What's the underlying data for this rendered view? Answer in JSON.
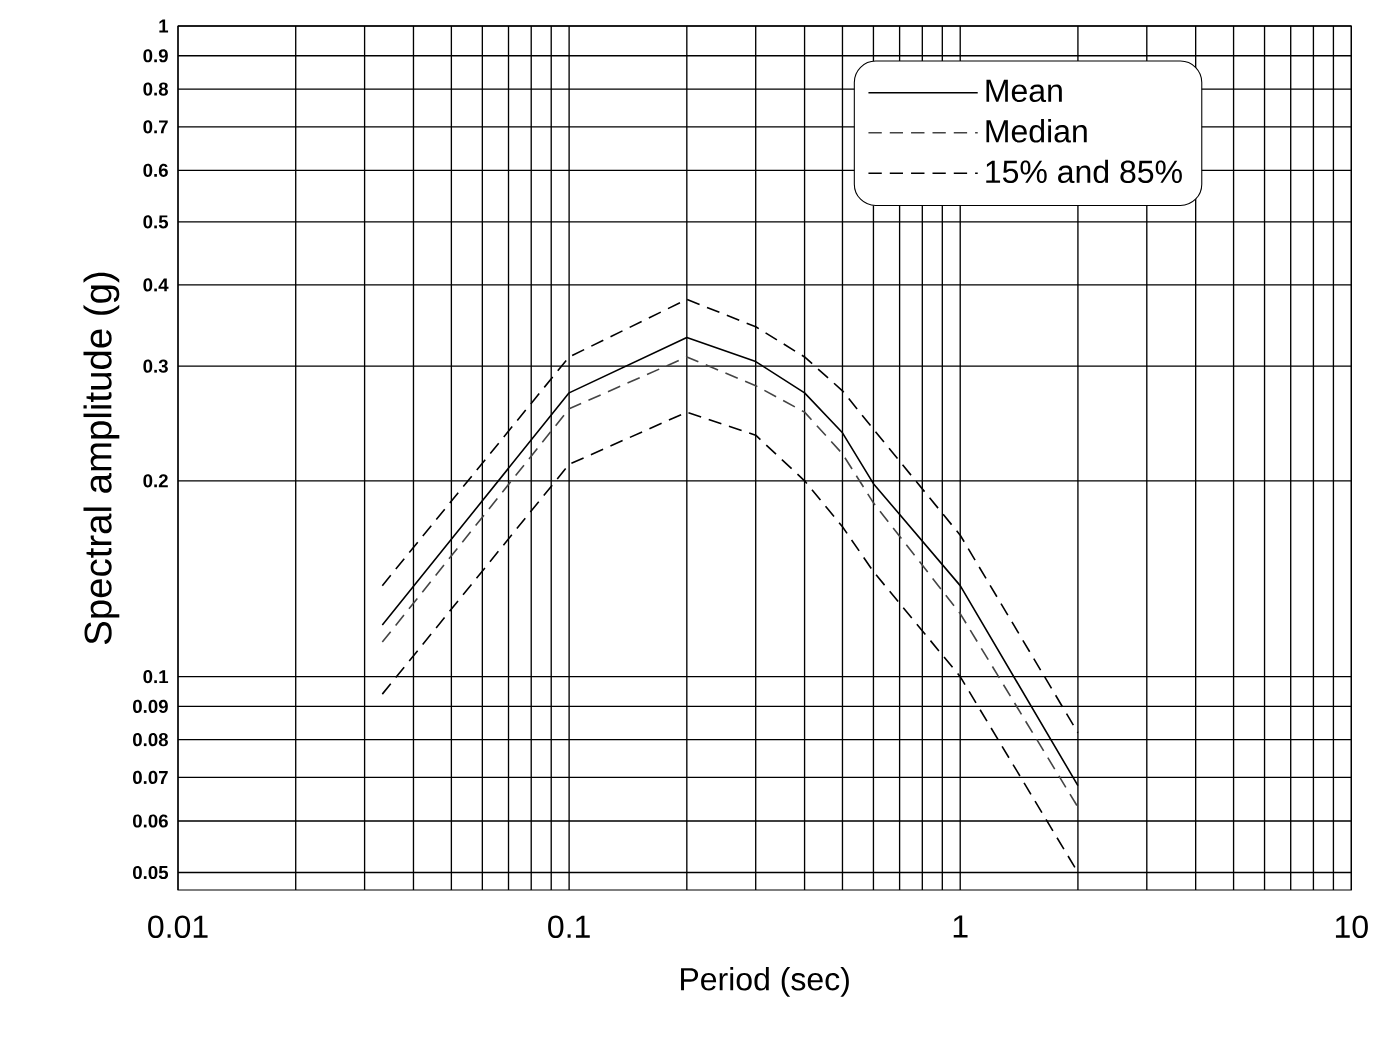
{
  "chart_data": {
    "type": "line",
    "xlabel": "Period (sec)",
    "ylabel": "Spectral amplitude (g)",
    "log": "xy",
    "grid": true,
    "legend": "top right",
    "marker": "none",
    "xlim": [
      0.01,
      10
    ],
    "ylim": [
      0.047,
      1
    ],
    "xticks": [
      0.01,
      {
        "value": 0.02,
        "label": null
      },
      {
        "value": 0.03,
        "label": null
      },
      {
        "value": 0.04,
        "label": null
      },
      {
        "value": 0.05,
        "label": null
      },
      {
        "value": 0.06,
        "label": null
      },
      {
        "value": 0.07,
        "label": null
      },
      {
        "value": 0.08,
        "label": null
      },
      {
        "value": 0.09,
        "label": null
      },
      0.1,
      {
        "value": 0.2,
        "label": null
      },
      {
        "value": 0.3,
        "label": null
      },
      {
        "value": 0.4,
        "label": null
      },
      {
        "value": 0.5,
        "label": null
      },
      {
        "value": 0.6,
        "label": null
      },
      {
        "value": 0.7,
        "label": null
      },
      {
        "value": 0.8,
        "label": null
      },
      {
        "value": 0.9,
        "label": null
      },
      1,
      {
        "value": 2,
        "label": null
      },
      {
        "value": 3,
        "label": null
      },
      {
        "value": 4,
        "label": null
      },
      {
        "value": 5,
        "label": null
      },
      {
        "value": 6,
        "label": null
      },
      {
        "value": 7,
        "label": null
      },
      {
        "value": 8,
        "label": null
      },
      {
        "value": 9,
        "label": null
      },
      10
    ],
    "yticks": [
      0.05,
      0.06,
      0.07,
      0.08,
      0.09,
      0.1,
      0.2,
      0.3,
      0.4,
      0.5,
      0.6,
      0.7,
      0.8,
      0.9,
      1
    ],
    "x": [
      0.0333,
      0.1,
      0.2,
      0.3,
      0.4,
      0.5,
      0.6,
      1,
      2
    ],
    "series": [
      {
        "name": "Mean",
        "color": "#000000",
        "line_style": "solid",
        "values": [
          0.12,
          0.273,
          0.332,
          0.305,
          0.273,
          0.237,
          0.198,
          0.138,
          0.068
        ]
      },
      {
        "name": "Median",
        "color": "#444444",
        "line_style": "dashed",
        "values": [
          0.113,
          0.258,
          0.31,
          0.28,
          0.255,
          0.22,
          0.185,
          0.125,
          0.063
        ]
      },
      {
        "name": "15% and 85%",
        "color": "#000000",
        "line_style": "dashed",
        "values": [
          0.138,
          0.31,
          0.38,
          0.345,
          0.31,
          0.275,
          0.24,
          0.165,
          0.082
        ]
      },
      {
        "color": "#000000",
        "line_style": "dashed",
        "values": [
          0.094,
          0.212,
          0.255,
          0.235,
          0.2,
          0.17,
          0.145,
          0.1,
          0.05
        ]
      }
    ]
  }
}
